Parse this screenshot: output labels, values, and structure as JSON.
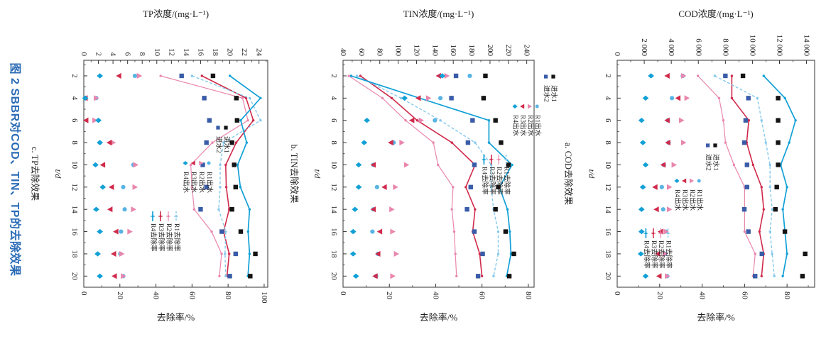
{
  "figure_caption": {
    "text": "图 2  SBBR对COD、TIN、TP的去除效果",
    "color": "#2c6cb6"
  },
  "axis_labels": {
    "time": "t/d",
    "removal": "去除率/%"
  },
  "time_ticks": [
    2,
    4,
    6,
    8,
    10,
    12,
    14,
    16,
    18,
    20
  ],
  "colors": {
    "influent1": "#141414",
    "influent2": "#3a5ca8",
    "r1": "#57b4e4",
    "r2": "#e986ad",
    "r3": "#d02a4b",
    "r4": "#12a0d6",
    "r1_line": "#85c9ec",
    "axis": "#333333",
    "text": "#1e1e1e"
  },
  "legend": {
    "entries": [
      {
        "key": "influent1",
        "label": "进水1",
        "glyph": "square-icon",
        "color_key": "influent1"
      },
      {
        "key": "influent2",
        "label": "进水2",
        "glyph": "square-icon",
        "color_key": "influent2"
      },
      {
        "key": "r1_effluent",
        "label": "R1出水",
        "glyph": "circle-icon",
        "color_key": "r1"
      },
      {
        "key": "r2_effluent",
        "label": "R2出水",
        "glyph": "triangle-up-icon",
        "color_key": "r2"
      },
      {
        "key": "r3_effluent",
        "label": "R3出水",
        "glyph": "triangle-down-icon",
        "color_key": "r3"
      },
      {
        "key": "r4_effluent",
        "label": "R4出水",
        "glyph": "diamond-icon",
        "color_key": "r4"
      },
      {
        "key": "r1_removal",
        "label": "R1去除率",
        "glyph": "dashed-line-icon",
        "color_key": "r1_line"
      },
      {
        "key": "r2_removal",
        "label": "R2去除率",
        "glyph": "line-icon",
        "color_key": "r2"
      },
      {
        "key": "r3_removal",
        "label": "R3去除率",
        "glyph": "line-icon",
        "color_key": "r3"
      },
      {
        "key": "r4_removal",
        "label": "R4去除率",
        "glyph": "line-icon",
        "color_key": "r4"
      }
    ]
  },
  "chart_data": [
    {
      "id": "a",
      "type": "scatter+line",
      "subcaption": "a. COD去除效果",
      "conc_axis": {
        "title": "COD浓度/(mg·L⁻¹)",
        "ticks": [
          0,
          2000,
          4000,
          6000,
          8000,
          10000,
          12000,
          14000
        ],
        "tick_labels": [
          "0",
          "2 000",
          "4 000",
          "6 000",
          "8 000",
          "10 000",
          "12 000",
          "14 000"
        ],
        "minor_step": 1000,
        "domain": [
          0,
          14600
        ]
      },
      "rate_axis": {
        "ticks": [
          0,
          20,
          40,
          60,
          80
        ],
        "minor_step": 10,
        "domain": [
          0,
          93
        ]
      },
      "t": [
        2,
        4,
        6,
        8,
        10,
        12,
        14,
        16,
        18,
        20
      ],
      "series": {
        "influent1": [
          9300,
          11900,
          11900,
          11900,
          11900,
          11800,
          11700,
          12400,
          13900,
          13700
        ],
        "influent2": [
          8000,
          9700,
          9500,
          9400,
          9600,
          9600,
          9400,
          9700,
          10700,
          10200
        ],
        "r1_effluent": [
          4850,
          4050,
          3750,
          3800,
          3450,
          3300,
          3400,
          3600,
          3550,
          3700
        ],
        "r2_effluent": [
          4900,
          5150,
          4750,
          4900,
          4200,
          3850,
          3850,
          3600,
          3550,
          3700
        ],
        "r3_effluent": [
          3700,
          4500,
          3700,
          3750,
          3400,
          2800,
          2900,
          3200,
          3000,
          3100
        ],
        "r4_effluent": [
          2500,
          2100,
          1800,
          1900,
          2100,
          1900,
          1800,
          1800,
          1750,
          2100
        ],
        "r1_removal": [
          46,
          66,
          68,
          70,
          72,
          72,
          73,
          72,
          73,
          74
        ],
        "r2_removal": [
          38,
          48,
          50,
          51,
          55,
          60,
          60,
          60,
          65,
          64
        ],
        "r3_removal": [
          54,
          54,
          62,
          61,
          64,
          68,
          69,
          67,
          69,
          68
        ],
        "r4_removal": [
          69,
          79,
          84,
          81,
          77,
          80,
          78,
          79,
          80,
          78
        ]
      },
      "legend_pos": {
        "x": 200,
        "y": 156,
        "pitch": 10.4,
        "indents": [
          0,
          50,
          122
        ]
      }
    },
    {
      "id": "b",
      "type": "scatter+line",
      "subcaption": "b. TIN去除效果",
      "conc_axis": {
        "title": "TIN浓度/(mg·L⁻¹)",
        "ticks": [
          40,
          60,
          80,
          100,
          120,
          140,
          160,
          180,
          200,
          220,
          240
        ],
        "tick_labels": [
          "40",
          "60",
          "80",
          "100",
          "120",
          "140",
          "160",
          "180",
          "200",
          "220",
          "240"
        ],
        "minor_step": 10,
        "domain": [
          40,
          248
        ]
      },
      "rate_axis": {
        "ticks": [
          0,
          20,
          40,
          60,
          80
        ],
        "minor_step": 10,
        "domain": [
          0,
          82.5
        ]
      },
      "t": [
        2,
        4,
        6,
        8,
        10,
        12,
        14,
        16,
        18,
        20
      ],
      "series": {
        "influent1": [
          195,
          193,
          206,
          212,
          220,
          209,
          206,
          217,
          226,
          221
        ],
        "influent2": [
          163,
          158,
          181,
          176,
          183,
          179,
          175,
          183,
          192,
          187
        ],
        "r1_effluent": [
          178,
          146,
          140,
          95,
          73,
          77,
          73,
          72,
          78,
          76
        ],
        "r2_effluent": [
          153,
          133,
          125,
          104,
          109,
          97,
          93,
          94,
          98,
          94
        ],
        "r3_effluent": [
          144,
          122,
          115,
          92,
          73,
          85,
          73,
          80,
          78,
          75
        ],
        "r4_effluent": [
          148,
          107,
          66,
          63,
          57,
          57,
          53,
          51,
          51,
          54
        ],
        "r1_removal": [
          6,
          25,
          42,
          57,
          64,
          64,
          65,
          67,
          67,
          65
        ],
        "r2_removal": [
          2.5,
          17,
          27,
          39,
          41,
          47.5,
          47,
          48,
          48.5,
          49
        ],
        "r3_removal": [
          7.5,
          21,
          32,
          47,
          57,
          53,
          57,
          56,
          59,
          60
        ],
        "r4_removal": [
          3.5,
          33,
          63,
          63,
          73,
          67.5,
          71,
          72,
          72.5,
          70.7
        ]
      },
      "legend_pos": {
        "x": 103,
        "y": 384,
        "pitch": 10.4,
        "indents": [
          0,
          42,
          115
        ]
      }
    },
    {
      "id": "c",
      "type": "scatter+line",
      "subcaption": "c. TP去除效果",
      "conc_axis": {
        "title": "TP浓度/(mg·L⁻¹)",
        "ticks": [
          0,
          2,
          4,
          6,
          8,
          10,
          12,
          14,
          16,
          18,
          20,
          22,
          24
        ],
        "tick_labels": [
          "0",
          "2",
          "4",
          "6",
          "8",
          "10",
          "12",
          "14",
          "16",
          "18",
          "20",
          "22",
          "24"
        ],
        "minor_step": 1,
        "domain": [
          0,
          25.2
        ]
      },
      "rate_axis": {
        "ticks": [
          0,
          20,
          40,
          60,
          80,
          100
        ],
        "minor_step": 10,
        "domain": [
          0,
          102
        ]
      },
      "t": [
        2,
        4,
        6,
        8,
        10,
        12,
        14,
        16,
        18,
        20
      ],
      "series": {
        "influent1": [
          17.7,
          20.9,
          21.0,
          20.3,
          20.6,
          20.8,
          20.3,
          21.5,
          23.5,
          22.8
        ],
        "influent2": [
          13.4,
          16.5,
          17.2,
          16.8,
          16.3,
          16.8,
          16.0,
          18.9,
          20.8,
          20.0
        ],
        "r1_effluent": [
          7.0,
          1.7,
          2.0,
          2.2,
          6.8,
          5.4,
          5.6,
          5.1,
          5.0,
          5.4
        ],
        "r2_effluent": [
          7.6,
          1.7,
          1.5,
          4.0,
          7.1,
          7.0,
          6.8,
          6.3,
          5.2,
          5.4
        ],
        "r3_effluent": [
          4.8,
          0.2,
          0.3,
          3.5,
          2.6,
          3.8,
          3.6,
          4.4,
          4.1,
          4.2
        ],
        "r4_effluent": [
          2.2,
          0.2,
          2.0,
          2.2,
          1.6,
          2.6,
          1.7,
          2.2,
          1.9,
          2.2
        ],
        "r1_removal": [
          60,
          92,
          98,
          77.5,
          75.6,
          75.6,
          74.8,
          78.7,
          78.3,
          78.7
        ],
        "r2_removal": [
          42.6,
          88,
          91,
          71.3,
          59.3,
          60,
          61.2,
          70.9,
          76.4,
          75.2
        ],
        "r3_removal": [
          65.5,
          90,
          94,
          84.5,
          78.7,
          79,
          80.6,
          77.5,
          80.6,
          79.4
        ],
        "r4_removal": [
          81,
          98,
          87,
          90.3,
          85.3,
          86.8,
          91.9,
          91.1,
          91.9,
          91
        ]
      },
      "legend_pos": {
        "x": 175,
        "y": 845,
        "pitch": 11,
        "indents": [
          0,
          50,
          123
        ]
      }
    }
  ]
}
